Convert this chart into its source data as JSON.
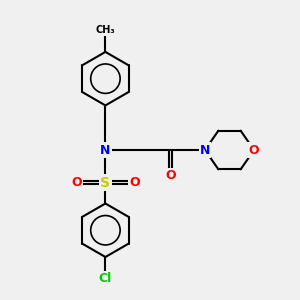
{
  "background_color": "#f0f0f0",
  "bond_color": "#000000",
  "atom_colors": {
    "N": "#0000ff",
    "O": "#ff0000",
    "S": "#cccc00",
    "Cl": "#00cc00",
    "C": "#000000"
  }
}
